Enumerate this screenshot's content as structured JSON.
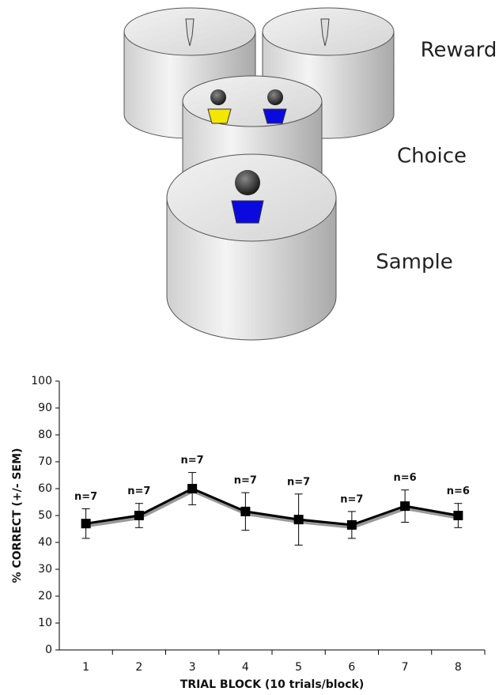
{
  "diagram": {
    "labels": [
      "Reward",
      "Choice",
      "Sample"
    ]
  },
  "chart_data": {
    "type": "line",
    "xlabel": "TRIAL BLOCK (10 trials/block)",
    "ylabel": "% CORRECT (+/- SEM)",
    "categories": [
      "1",
      "2",
      "3",
      "4",
      "5",
      "6",
      "7",
      "8"
    ],
    "series": [
      {
        "color": "#000000",
        "values": [
          47,
          50,
          60,
          51.5,
          48.5,
          46.5,
          53.5,
          50
        ],
        "errors": [
          5.5,
          4.5,
          6,
          7,
          9.5,
          5,
          6,
          4.5
        ],
        "annotations": [
          "n=7",
          "n=7",
          "n=7",
          "n=7",
          "n=7",
          "n=7",
          "n=6",
          "n=6"
        ]
      }
    ],
    "ylim": [
      0,
      100
    ],
    "yticks": [
      0,
      10,
      20,
      30,
      40,
      50,
      60,
      70,
      80,
      90,
      100
    ]
  }
}
